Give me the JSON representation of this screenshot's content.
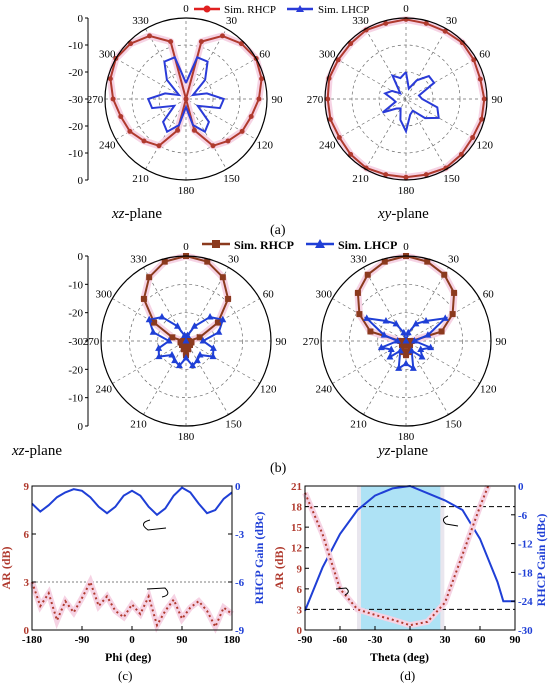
{
  "colors": {
    "rhcp": "#b03a2e",
    "rhcp_marker": "#8b3a1e",
    "lhcp": "#1f3fd6",
    "lhcp_a": "#2a3bd8",
    "grid": "#6a6a6a",
    "highlight": "#f6d3e4",
    "band": "#aee2f5"
  },
  "panel_a": {
    "legend": [
      "Sim. RHCP",
      "Sim. LHCP"
    ],
    "rlabels": [
      "0",
      "-10",
      "-20",
      "-30",
      "-20",
      "-10",
      "0"
    ],
    "angle_labels": [
      "0",
      "30",
      "60",
      "90",
      "120",
      "150",
      "180",
      "210",
      "240",
      "270",
      "300",
      "330"
    ],
    "plane_left": {
      "ital": "xz",
      "rest": "-plane"
    },
    "plane_right": {
      "ital": "xy",
      "rest": "-plane"
    },
    "caption": "(a)"
  },
  "panel_b": {
    "legend": [
      "Sim. RHCP",
      "Sim. LHCP"
    ],
    "rlabels": [
      "0",
      "-10",
      "-20",
      "-30",
      "-20",
      "-10",
      "0"
    ],
    "angle_labels": [
      "0",
      "30",
      "60",
      "90",
      "120",
      "150",
      "180",
      "210",
      "240",
      "270",
      "300",
      "330"
    ],
    "plane_left": {
      "ital": "xz",
      "rest": "-plane"
    },
    "plane_right": {
      "ital": "yz",
      "rest": "-plane"
    },
    "caption": "(b)"
  },
  "chart_data": [
    {
      "type": "polar-line",
      "panel": "a-xz",
      "r_range": [
        -30,
        0
      ],
      "series": [
        {
          "name": "Sim. RHCP",
          "theta": [
            0,
            15,
            30,
            45,
            60,
            75,
            90,
            105,
            120,
            135,
            150,
            165,
            180,
            195,
            210,
            225,
            240,
            255,
            270,
            285,
            300,
            315,
            330,
            345
          ],
          "values": [
            -30,
            -8,
            -3,
            -1,
            0,
            -1,
            -3,
            -5,
            -6,
            -8,
            -10,
            -18,
            -30,
            -18,
            -10,
            -8,
            -6,
            -5,
            -3,
            -1,
            0,
            -1,
            -3,
            -8
          ]
        },
        {
          "name": "Sim. LHCP",
          "theta": [
            0,
            15,
            30,
            45,
            60,
            75,
            90,
            105,
            120,
            135,
            150,
            165,
            180,
            195,
            210,
            225,
            240,
            255,
            270,
            285,
            300,
            315,
            330,
            345
          ],
          "values": [
            -24,
            -14,
            -14,
            -20,
            -27,
            -22,
            -16,
            -17,
            -25,
            -18,
            -16,
            -20,
            -27,
            -20,
            -16,
            -18,
            -25,
            -17,
            -16,
            -22,
            -27,
            -20,
            -14,
            -14
          ]
        }
      ]
    },
    {
      "type": "polar-line",
      "panel": "a-xy",
      "r_range": [
        -30,
        0
      ],
      "series": [
        {
          "name": "Sim. RHCP",
          "theta": [
            0,
            15,
            30,
            45,
            60,
            75,
            90,
            105,
            120,
            135,
            150,
            165,
            180,
            195,
            210,
            225,
            240,
            255,
            270,
            285,
            300,
            315,
            330,
            345
          ],
          "values": [
            -0.5,
            -1,
            -1,
            -0.5,
            -1,
            -1.5,
            -1,
            -1,
            -1.5,
            -1,
            -0.5,
            -1,
            -1,
            -1,
            -0.5,
            -1,
            -1.5,
            -1,
            -1,
            -0.5,
            -1,
            -1,
            -0.5,
            -1
          ]
        },
        {
          "name": "Sim. LHCP",
          "theta": [
            0,
            15,
            30,
            45,
            60,
            75,
            90,
            105,
            120,
            135,
            150,
            165,
            180,
            195,
            210,
            225,
            240,
            255,
            270,
            285,
            300,
            315,
            330,
            345
          ],
          "values": [
            -20,
            -26,
            -22,
            -18,
            -18,
            -25,
            -24,
            -18,
            -16,
            -20,
            -25,
            -24,
            -18,
            -22,
            -26,
            -25,
            -20,
            -26,
            -25,
            -22,
            -24,
            -27,
            -20,
            -22
          ]
        }
      ]
    },
    {
      "type": "polar-line",
      "panel": "b-xz",
      "r_range": [
        -30,
        0
      ],
      "series": [
        {
          "name": "Sim. RHCP",
          "theta": [
            0,
            15,
            30,
            45,
            60,
            75,
            90,
            105,
            120,
            135,
            150,
            165,
            180,
            195,
            210,
            225,
            240,
            255,
            270,
            285,
            300,
            315,
            330,
            345
          ],
          "values": [
            0,
            -1,
            -4,
            -9,
            -17,
            -25,
            -29,
            -28,
            -30,
            -28,
            -29,
            -27,
            -25,
            -27,
            -29,
            -28,
            -30,
            -28,
            -29,
            -25,
            -17,
            -9,
            -4,
            -1
          ]
        },
        {
          "name": "Sim. LHCP",
          "theta": [
            0,
            15,
            30,
            45,
            60,
            75,
            90,
            105,
            120,
            135,
            150,
            165,
            180,
            195,
            210,
            225,
            240,
            255,
            270,
            285,
            300,
            315,
            330,
            345
          ],
          "values": [
            -30,
            -28,
            -24,
            -18,
            -15,
            -18,
            -24,
            -20,
            -19,
            -23,
            -22,
            -21,
            -24,
            -21,
            -22,
            -23,
            -19,
            -20,
            -24,
            -18,
            -15,
            -18,
            -24,
            -28
          ]
        }
      ]
    },
    {
      "type": "polar-line",
      "panel": "b-yz",
      "r_range": [
        -30,
        0
      ],
      "series": [
        {
          "name": "Sim. RHCP",
          "theta": [
            0,
            15,
            30,
            45,
            60,
            75,
            90,
            105,
            120,
            135,
            150,
            165,
            180,
            195,
            210,
            225,
            240,
            255,
            270,
            285,
            300,
            315,
            330,
            345
          ],
          "values": [
            0,
            -1,
            -3,
            -6,
            -11,
            -17,
            -28,
            -29,
            -30,
            -28,
            -28,
            -26,
            -25,
            -26,
            -28,
            -28,
            -30,
            -29,
            -28,
            -17,
            -11,
            -6,
            -3,
            -1
          ]
        },
        {
          "name": "Sim. LHCP",
          "theta": [
            0,
            15,
            30,
            45,
            60,
            75,
            90,
            105,
            120,
            135,
            150,
            165,
            180,
            195,
            210,
            225,
            240,
            255,
            270,
            285,
            300,
            315,
            330,
            345
          ],
          "values": [
            -30,
            -27,
            -23,
            -20,
            -14,
            -22,
            -27,
            -21,
            -24,
            -22,
            -26,
            -20,
            -22,
            -20,
            -26,
            -22,
            -24,
            -21,
            -27,
            -22,
            -14,
            -20,
            -23,
            -27
          ]
        }
      ]
    },
    {
      "type": "line",
      "panel": "c",
      "xlabel": "Phi (deg)",
      "ylabel_left": "AR (dB)",
      "ylabel_right": "RHCP Gain (dBc)",
      "xlim": [
        -180,
        180
      ],
      "ylim_left": [
        0,
        9
      ],
      "ylim_right": [
        -9,
        0
      ],
      "xticks": [
        "-180",
        "-90",
        "0",
        "90",
        "180"
      ],
      "yticks_left": [
        "0",
        "3",
        "6",
        "9"
      ],
      "yticks_right": [
        "0",
        "-3",
        "-6",
        "-9"
      ],
      "reference_line_left": 3,
      "caption": "(c)",
      "series": [
        {
          "name": "RHCP Gain",
          "axis": "right",
          "x": [
            -180,
            -165,
            -150,
            -135,
            -120,
            -105,
            -90,
            -75,
            -60,
            -45,
            -30,
            -15,
            0,
            15,
            30,
            45,
            60,
            75,
            90,
            105,
            120,
            135,
            150,
            165,
            180
          ],
          "values": [
            -1.1,
            -1.6,
            -1.2,
            -0.7,
            -0.4,
            -0.2,
            -0.3,
            -0.7,
            -1.3,
            -1.7,
            -1.3,
            -0.6,
            -0.3,
            -0.6,
            -1.3,
            -1.8,
            -1.4,
            -0.6,
            -0.1,
            -0.4,
            -1.1,
            -1.7,
            -1.5,
            -0.8,
            -0.4
          ]
        },
        {
          "name": "AR",
          "axis": "left",
          "x": [
            -180,
            -165,
            -150,
            -135,
            -120,
            -105,
            -90,
            -75,
            -60,
            -45,
            -30,
            -15,
            0,
            15,
            30,
            45,
            60,
            75,
            90,
            105,
            120,
            135,
            150,
            165,
            180
          ],
          "values": [
            3.0,
            1.5,
            2.3,
            0.6,
            1.8,
            1.1,
            2.0,
            3.0,
            1.5,
            2.1,
            1.2,
            0.8,
            1.6,
            1.0,
            2.1,
            0.3,
            1.2,
            1.9,
            0.7,
            1.4,
            1.8,
            1.2,
            0.2,
            1.4,
            1.0
          ]
        }
      ]
    },
    {
      "type": "line",
      "panel": "d",
      "xlabel": "Theta (deg)",
      "ylabel_left": "AR (dB)",
      "ylabel_right": "RHCP Gain (dBc)",
      "xlim": [
        -90,
        90
      ],
      "ylim_left": [
        0,
        21
      ],
      "ylim_right": [
        -30,
        0
      ],
      "xticks": [
        "-90",
        "-60",
        "-30",
        "0",
        "30",
        "60",
        "90"
      ],
      "yticks_left": [
        "0",
        "3",
        "6",
        "9",
        "12",
        "15",
        "18",
        "21"
      ],
      "yticks_right": [
        "0",
        "-6",
        "-12",
        "-18",
        "-24",
        "-30"
      ],
      "reference_lines_left": [
        3,
        18
      ],
      "band_x": [
        -42,
        26
      ],
      "caption": "(d)",
      "series": [
        {
          "name": "RHCP Gain",
          "axis": "right",
          "x": [
            -90,
            -75,
            -60,
            -45,
            -30,
            -15,
            0,
            15,
            30,
            45,
            60,
            75,
            80,
            90
          ],
          "values": [
            -26,
            -17,
            -10,
            -5,
            -2,
            -0.5,
            0,
            -1.5,
            -3,
            -5,
            -11,
            -20,
            -24,
            -24
          ]
        },
        {
          "name": "AR",
          "axis": "left",
          "x": [
            -90,
            -75,
            -60,
            -45,
            -30,
            -15,
            0,
            15,
            30,
            45,
            60,
            67
          ],
          "values": [
            20,
            14,
            6,
            3,
            2.2,
            1.5,
            0.7,
            1.2,
            4,
            11,
            18,
            21
          ]
        }
      ]
    }
  ]
}
